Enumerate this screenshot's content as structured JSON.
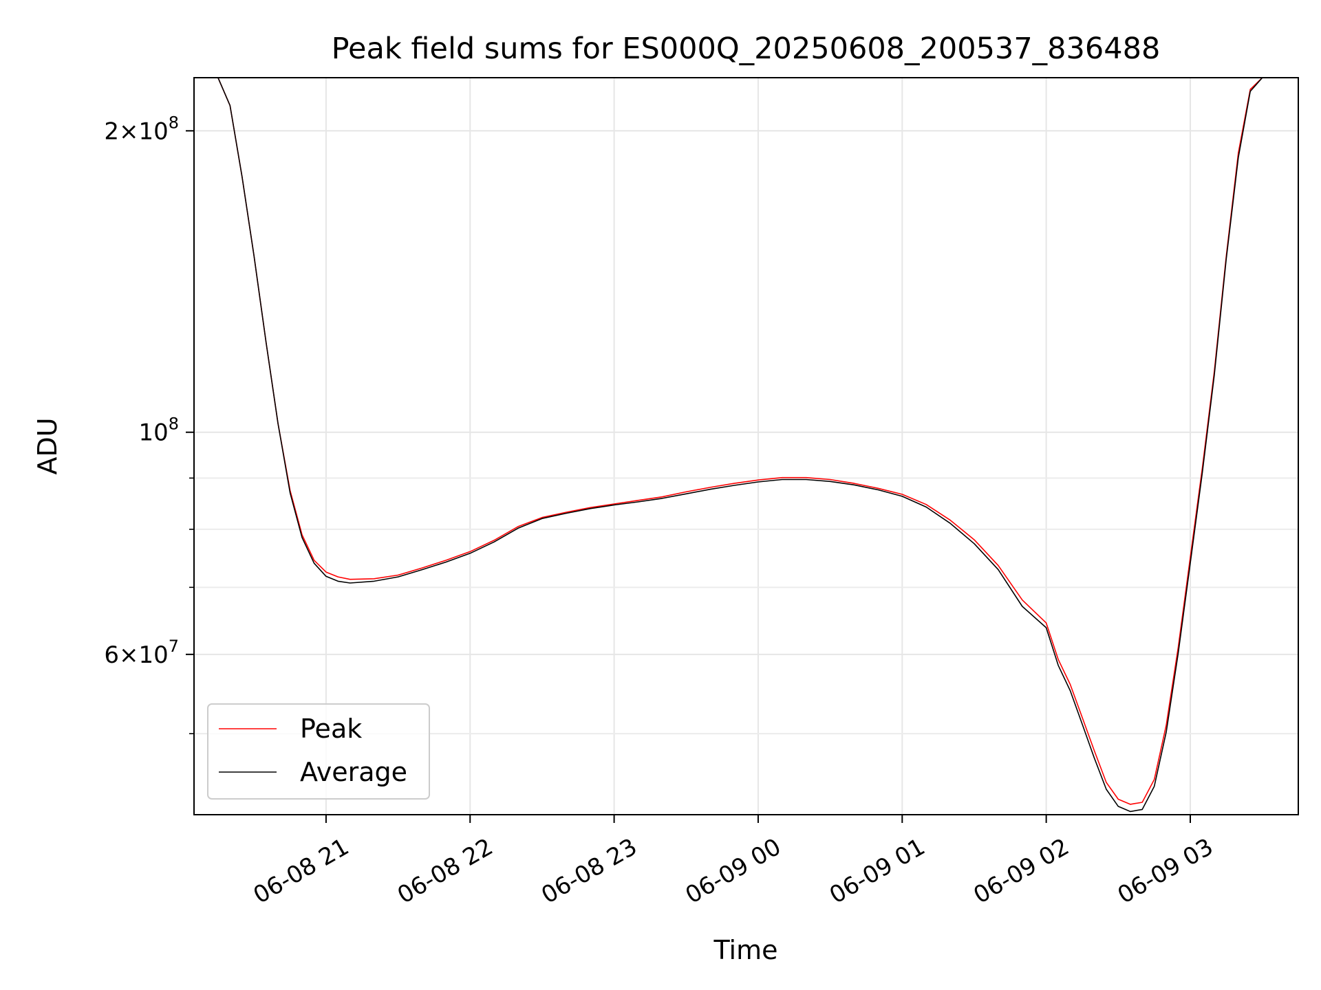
{
  "chart_data": {
    "type": "line",
    "title": "Peak field sums for ES000Q_20250608_200537_836488",
    "xlabel": "Time",
    "ylabel": "ADU",
    "x_tick_labels": [
      "06-08 21",
      "06-08 22",
      "06-08 23",
      "06-09 00",
      "06-09 01",
      "06-09 02",
      "06-09 03"
    ],
    "x_ticks": [
      "2025-06-08T21:00",
      "2025-06-08T22:00",
      "2025-06-08T23:00",
      "2025-06-09T00:00",
      "2025-06-09T01:00",
      "2025-06-09T02:00",
      "2025-06-09T03:00"
    ],
    "xlim": [
      "2025-06-08T20:05",
      "2025-06-09T03:45"
    ],
    "y_scale": "log",
    "ylim": [
      41500000,
      226000000
    ],
    "y_tick_labels": [
      {
        "value": 200000000,
        "mantissa": "2",
        "exponent": "8"
      },
      {
        "value": 100000000,
        "mantissa": "",
        "exponent": "8"
      },
      {
        "value": 60000000,
        "mantissa": "6",
        "exponent": "7"
      }
    ],
    "y_minor_ticks": [
      50000000,
      70000000,
      80000000,
      90000000
    ],
    "grid": true,
    "legend": {
      "position": "lower-left"
    },
    "series": [
      {
        "name": "Peak",
        "color": "#ff0000",
        "x": [
          "2025-06-08T20:10",
          "2025-06-08T20:15",
          "2025-06-08T20:20",
          "2025-06-08T20:25",
          "2025-06-08T20:30",
          "2025-06-08T20:35",
          "2025-06-08T20:40",
          "2025-06-08T20:45",
          "2025-06-08T20:50",
          "2025-06-08T20:55",
          "2025-06-08T21:00",
          "2025-06-08T21:05",
          "2025-06-08T21:10",
          "2025-06-08T21:20",
          "2025-06-08T21:30",
          "2025-06-08T21:40",
          "2025-06-08T21:50",
          "2025-06-08T22:00",
          "2025-06-08T22:10",
          "2025-06-08T22:20",
          "2025-06-08T22:30",
          "2025-06-08T22:40",
          "2025-06-08T22:50",
          "2025-06-08T23:00",
          "2025-06-08T23:10",
          "2025-06-08T23:20",
          "2025-06-08T23:30",
          "2025-06-08T23:40",
          "2025-06-08T23:50",
          "2025-06-09T00:00",
          "2025-06-09T00:10",
          "2025-06-09T00:20",
          "2025-06-09T00:30",
          "2025-06-09T00:40",
          "2025-06-09T00:50",
          "2025-06-09T01:00",
          "2025-06-09T01:10",
          "2025-06-09T01:20",
          "2025-06-09T01:30",
          "2025-06-09T01:40",
          "2025-06-09T01:50",
          "2025-06-09T02:00",
          "2025-06-09T02:05",
          "2025-06-09T02:10",
          "2025-06-09T02:15",
          "2025-06-09T02:20",
          "2025-06-09T02:25",
          "2025-06-09T02:30",
          "2025-06-09T02:35",
          "2025-06-09T02:40",
          "2025-06-09T02:45",
          "2025-06-09T02:50",
          "2025-06-09T02:55",
          "2025-06-09T03:00",
          "2025-06-09T03:05",
          "2025-06-09T03:10",
          "2025-06-09T03:15",
          "2025-06-09T03:20",
          "2025-06-09T03:25",
          "2025-06-09T03:30",
          "2025-06-09T03:35",
          "2025-06-09T03:40"
        ],
        "y": [
          226000000,
          226000000,
          212000000,
          180000000,
          150000000,
          123000000,
          102000000,
          87500000,
          79000000,
          74500000,
          72500000,
          71700000,
          71300000,
          71400000,
          72000000,
          73200000,
          74500000,
          76000000,
          78000000,
          80500000,
          82200000,
          83200000,
          84100000,
          84800000,
          85500000,
          86200000,
          87200000,
          88100000,
          88900000,
          89600000,
          90100000,
          90100000,
          89700000,
          88900000,
          87900000,
          86700000,
          84700000,
          81700000,
          78100000,
          73600000,
          68000000,
          64500000,
          59300000,
          56000000,
          51900000,
          48100000,
          44700000,
          43000000,
          42500000,
          42700000,
          45000000,
          51000000,
          61000000,
          75000000,
          92000000,
          115000000,
          150000000,
          190000000,
          220000000,
          226000000,
          226000000,
          226000000
        ]
      },
      {
        "name": "Average",
        "color": "#000000",
        "x": [
          "2025-06-08T20:10",
          "2025-06-08T20:15",
          "2025-06-08T20:20",
          "2025-06-08T20:25",
          "2025-06-08T20:30",
          "2025-06-08T20:35",
          "2025-06-08T20:40",
          "2025-06-08T20:45",
          "2025-06-08T20:50",
          "2025-06-08T20:55",
          "2025-06-08T21:00",
          "2025-06-08T21:05",
          "2025-06-08T21:10",
          "2025-06-08T21:20",
          "2025-06-08T21:30",
          "2025-06-08T21:40",
          "2025-06-08T21:50",
          "2025-06-08T22:00",
          "2025-06-08T22:10",
          "2025-06-08T22:20",
          "2025-06-08T22:30",
          "2025-06-08T22:40",
          "2025-06-08T22:50",
          "2025-06-08T23:00",
          "2025-06-08T23:10",
          "2025-06-08T23:20",
          "2025-06-08T23:30",
          "2025-06-08T23:40",
          "2025-06-08T23:50",
          "2025-06-09T00:00",
          "2025-06-09T00:10",
          "2025-06-09T00:20",
          "2025-06-09T00:30",
          "2025-06-09T00:40",
          "2025-06-09T00:50",
          "2025-06-09T01:00",
          "2025-06-09T01:10",
          "2025-06-09T01:20",
          "2025-06-09T01:30",
          "2025-06-09T01:40",
          "2025-06-09T01:50",
          "2025-06-09T02:00",
          "2025-06-09T02:05",
          "2025-06-09T02:10",
          "2025-06-09T02:15",
          "2025-06-09T02:20",
          "2025-06-09T02:25",
          "2025-06-09T02:30",
          "2025-06-09T02:35",
          "2025-06-09T02:40",
          "2025-06-09T02:45",
          "2025-06-09T02:50",
          "2025-06-09T02:55",
          "2025-06-09T03:00",
          "2025-06-09T03:05",
          "2025-06-09T03:10",
          "2025-06-09T03:15",
          "2025-06-09T03:20",
          "2025-06-09T03:25",
          "2025-06-09T03:30",
          "2025-06-09T03:35",
          "2025-06-09T03:40"
        ],
        "y": [
          226000000,
          226000000,
          212000000,
          180000000,
          150000000,
          123000000,
          102000000,
          87000000,
          78500000,
          74000000,
          71800000,
          71000000,
          70700000,
          71000000,
          71700000,
          72900000,
          74200000,
          75700000,
          77700000,
          80200000,
          82000000,
          83000000,
          83900000,
          84600000,
          85200000,
          85900000,
          86800000,
          87700000,
          88500000,
          89200000,
          89700000,
          89700000,
          89300000,
          88600000,
          87600000,
          86300000,
          84200000,
          81100000,
          77400000,
          72900000,
          67000000,
          63800000,
          58500000,
          55200000,
          51100000,
          47300000,
          44000000,
          42300000,
          41800000,
          42000000,
          44300000,
          50200000,
          60200000,
          74000000,
          91000000,
          114000000,
          149000000,
          188000000,
          219000000,
          226000000,
          226000000,
          226000000
        ]
      }
    ]
  }
}
